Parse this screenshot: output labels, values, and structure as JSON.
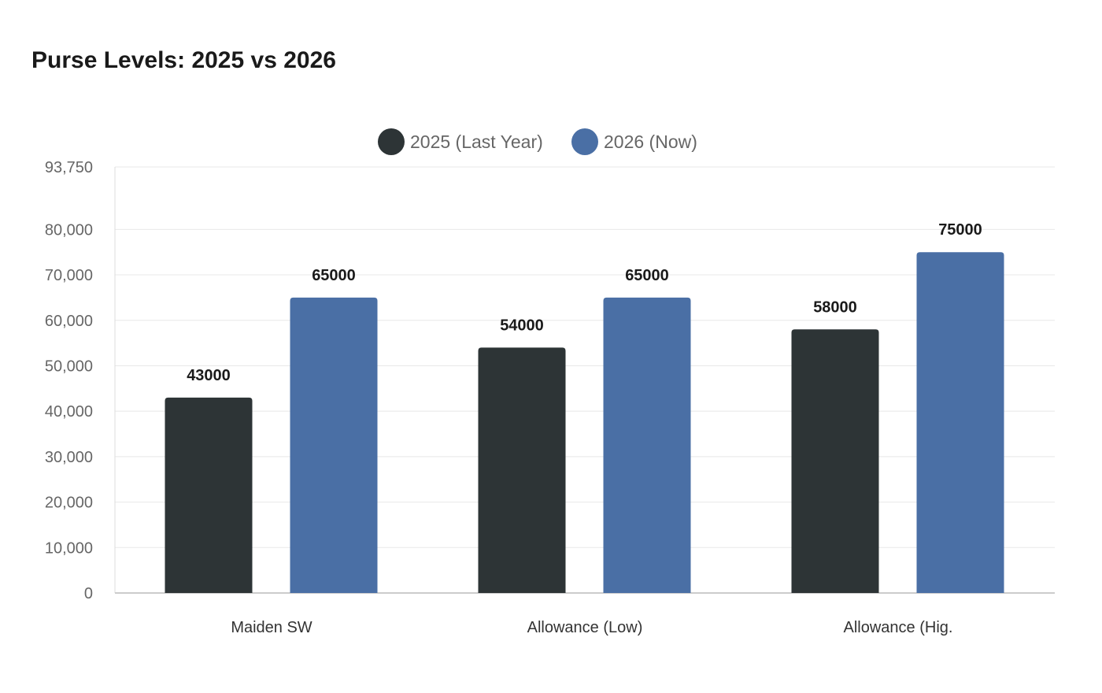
{
  "chart_data": {
    "type": "bar",
    "title": "Purse Levels: 2025 vs 2026",
    "categories": [
      "Maiden SW",
      "Allowance (Low)",
      "Allowance (Hig."
    ],
    "series": [
      {
        "name": "2025 (Last Year)",
        "color": "#2d3436",
        "values": [
          43000,
          54000,
          58000
        ]
      },
      {
        "name": "2026 (Now)",
        "color": "#4a6fa5",
        "values": [
          65000,
          65000,
          75000
        ]
      }
    ],
    "ylim": [
      0,
      93750
    ],
    "yticks": [
      0,
      10000,
      20000,
      30000,
      40000,
      50000,
      60000,
      70000,
      80000,
      93750
    ],
    "ytick_labels": [
      "0",
      "10,000",
      "20,000",
      "30,000",
      "40,000",
      "50,000",
      "60,000",
      "70,000",
      "80,000",
      "93,750"
    ],
    "grid": true,
    "legend": "top-center",
    "data_labels": true
  }
}
